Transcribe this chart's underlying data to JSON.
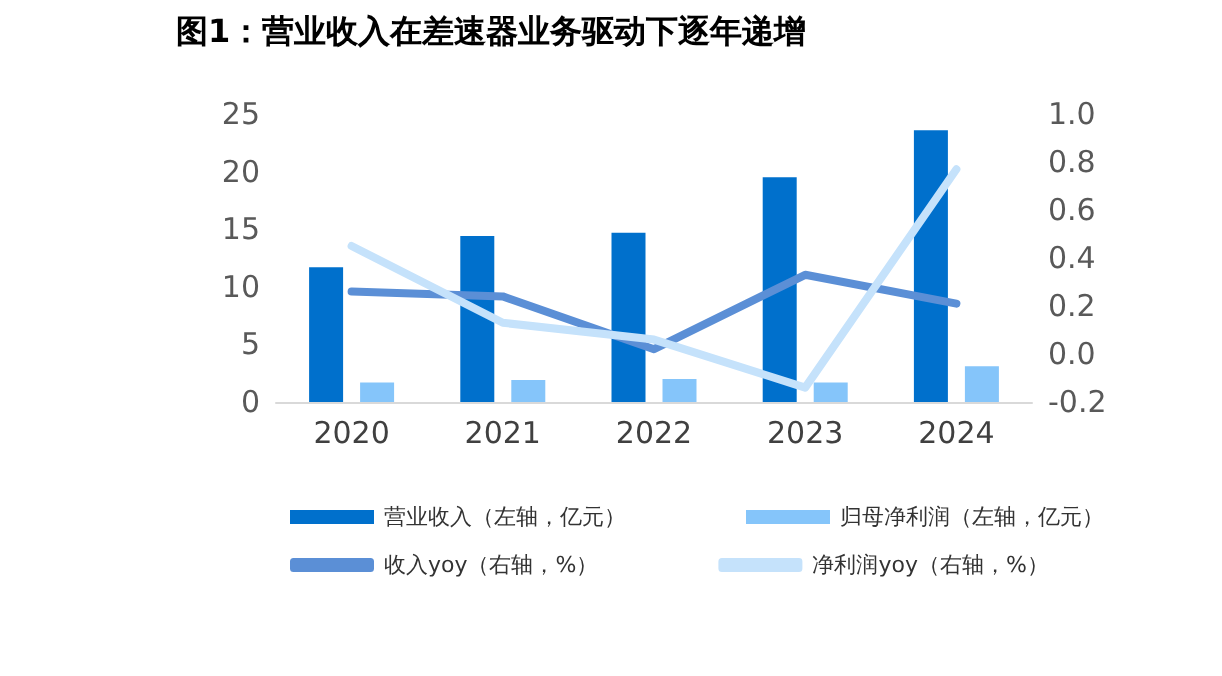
{
  "chart_data": {
    "type": "bar",
    "title": "图1：营业收入在差速器业务驱动下逐年递增",
    "categories": [
      "2020",
      "2021",
      "2022",
      "2023",
      "2024"
    ],
    "series": [
      {
        "name": "营业收入（左轴，亿元）",
        "color": "#0070cc",
        "values": [
          11.7,
          14.4,
          14.7,
          19.5,
          23.6
        ]
      },
      {
        "name": "归母净利润（左轴，亿元）",
        "color": "#85c5fa",
        "values": [
          1.7,
          1.9,
          2.0,
          1.7,
          3.1
        ]
      },
      {
        "name": "收入yoy（右轴，%）",
        "type": "line",
        "axis": "y2",
        "color": "#5b8fd6",
        "values": [
          0.26,
          0.24,
          0.02,
          0.33,
          0.21
        ]
      },
      {
        "name": "净利润yoy（右轴，%）",
        "type": "line",
        "axis": "y2",
        "color": "#c5e2fb",
        "values": [
          0.45,
          0.13,
          0.06,
          -0.14,
          0.77
        ]
      }
    ],
    "ylim": [
      0,
      25
    ],
    "yticks": [
      0,
      5,
      10,
      15,
      20,
      25
    ],
    "y2lim": [
      -0.2,
      1.0
    ],
    "y2ticks": [
      -0.2,
      {
        "value": 0,
        "label": "0.0"
      },
      0.2,
      0.4,
      0.6,
      0.8,
      {
        "value": 1,
        "label": "1.0"
      }
    ],
    "grid": false,
    "legend": "bottom",
    "marker": "none",
    "line_style": "solid"
  }
}
